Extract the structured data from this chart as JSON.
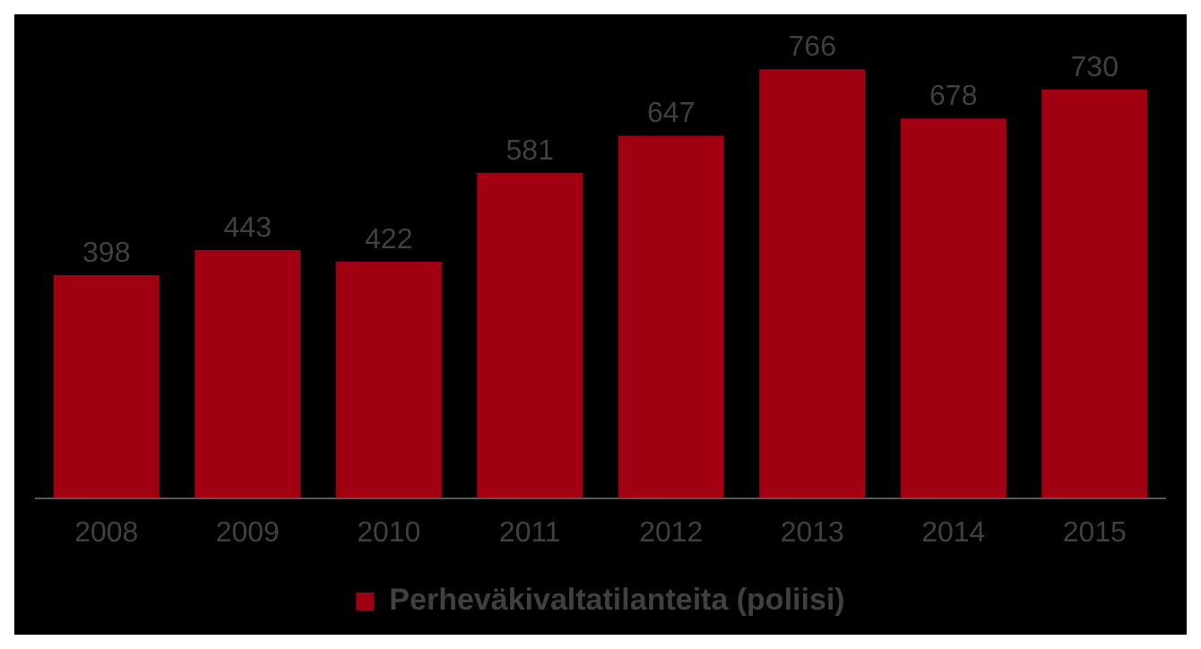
{
  "chart_data": {
    "type": "bar",
    "categories": [
      "2008",
      "2009",
      "2010",
      "2011",
      "2012",
      "2013",
      "2014",
      "2015"
    ],
    "series": [
      {
        "name": "Perheväkivaltatilanteita (poliisi)",
        "color": "#a00012",
        "values": [
          398,
          443,
          422,
          581,
          647,
          766,
          678,
          730
        ]
      }
    ],
    "data_labels": true,
    "legend": "bottom",
    "grid": false,
    "tick_labels": "x"
  }
}
